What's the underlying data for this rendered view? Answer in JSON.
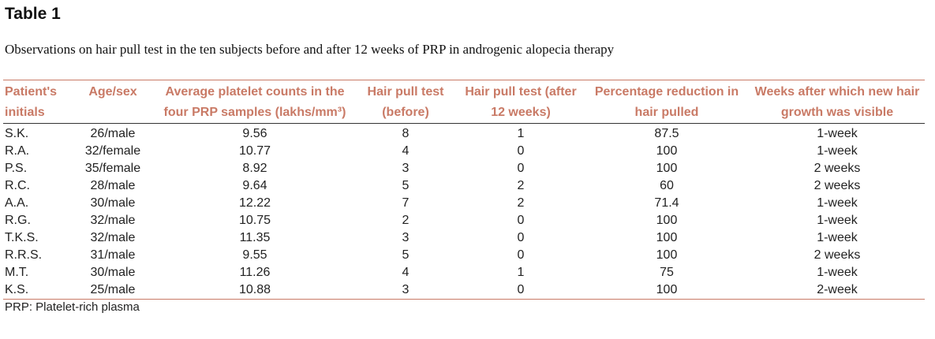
{
  "title": "Table 1",
  "caption": "Observations on hair pull test in the ten subjects before and after 12 weeks of PRP in androgenic alopecia therapy",
  "table": {
    "headers": [
      "Patient's initials",
      "Age/sex",
      "Average platelet counts in the four PRP samples (lakhs/mm³)",
      "Hair pull test (before)",
      "Hair pull test (after 12 weeks)",
      "Percentage reduction in hair pulled",
      "Weeks after which new hair growth was visible"
    ],
    "rows": [
      [
        "S.K.",
        "26/male",
        "9.56",
        "8",
        "1",
        "87.5",
        "1-week"
      ],
      [
        "R.A.",
        "32/female",
        "10.77",
        "4",
        "0",
        "100",
        "1-week"
      ],
      [
        "P.S.",
        "35/female",
        "8.92",
        "3",
        "0",
        "100",
        "2 weeks"
      ],
      [
        "R.C.",
        "28/male",
        "9.64",
        "5",
        "2",
        "60",
        "2 weeks"
      ],
      [
        "A.A.",
        "30/male",
        "12.22",
        "7",
        "2",
        "71.4",
        "1-week"
      ],
      [
        "R.G.",
        "32/male",
        "10.75",
        "2",
        "0",
        "100",
        "1-week"
      ],
      [
        "T.K.S.",
        "32/male",
        "11.35",
        "3",
        "0",
        "100",
        "1-week"
      ],
      [
        "R.R.S.",
        "31/male",
        "9.55",
        "5",
        "0",
        "100",
        "2 weeks"
      ],
      [
        "M.T.",
        "30/male",
        "11.26",
        "4",
        "1",
        "75",
        "1-week"
      ],
      [
        "K.S.",
        "25/male",
        "10.88",
        "3",
        "0",
        "100",
        "2-week"
      ]
    ]
  },
  "footnote": "PRP: Platelet-rich plasma",
  "colors": {
    "header_text": "#c97a66",
    "rule": "#c97a66"
  }
}
